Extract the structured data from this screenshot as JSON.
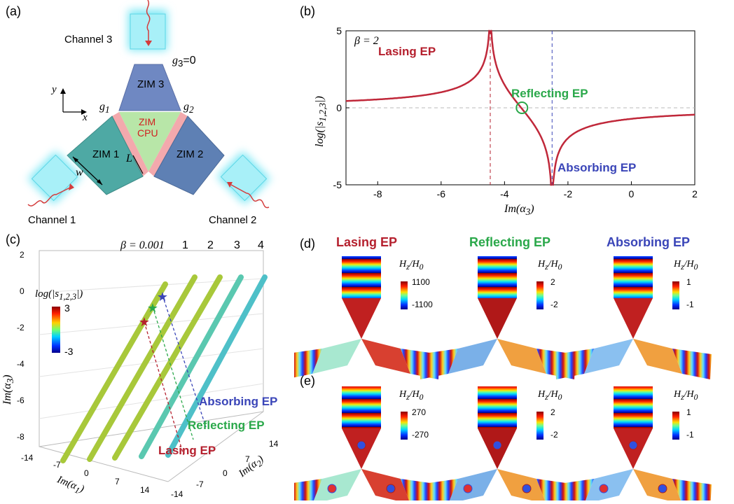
{
  "panel_a": {
    "label": "(a)",
    "channel3": "Channel 3",
    "channel1": "Channel 1",
    "channel2": "Channel 2",
    "g3": "g",
    "g3_sub": "3",
    "g3_eq": "=0",
    "g1": "g",
    "g1_sub": "1",
    "g2": "g",
    "g2_sub": "2",
    "zim3": "ZIM 3",
    "zim1": "ZIM 1",
    "zim2": "ZIM 2",
    "cpu1": "ZIM",
    "cpu2": "CPU",
    "L": "L",
    "w": "w",
    "axis_y": "y",
    "axis_x": "x"
  },
  "panel_b": {
    "label": "(b)",
    "beta": "β = 2",
    "lasing": "Lasing EP",
    "reflecting": "Reflecting EP",
    "absorbing": "Absorbing EP",
    "ylabel": "log(|s",
    "ylabel_sub": "1,2,3",
    "ylabel_end": "|)",
    "xlabel": "Im(α",
    "xlabel_sub": "3",
    "xlabel_end": ")",
    "xticks": [
      "-8",
      "-6",
      "-4",
      "-2",
      "0",
      "2"
    ],
    "yticks": [
      "5",
      "0",
      "-5"
    ]
  },
  "chart_data": {
    "type": "line",
    "xlabel": "Im(α3)",
    "ylabel": "log(|s1,2,3|)",
    "xlim": [
      -9,
      2
    ],
    "ylim": [
      -5,
      5
    ],
    "series": [
      {
        "pole_x": -4.45,
        "zero_x": -2.5
      }
    ],
    "markers": {
      "lasing_x": -4.45,
      "absorbing_x": -2.5,
      "reflecting": [
        -3.45,
        0.0
      ]
    }
  },
  "panel_c": {
    "label": "(c)",
    "beta_label": "β = 0.001",
    "betas": [
      "1",
      "2",
      "3",
      "4"
    ],
    "cb_title": "log(|s",
    "cb_title_sub": "1,2,3",
    "cb_title_end": "|)",
    "cb_max": "3",
    "cb_min": "-3",
    "absorbing": "Absorbing EP",
    "reflecting": "Reflecting EP",
    "lasing": "Lasing EP",
    "zlabel": "Im(α",
    "zlabel_sub": "3",
    "zlabel_end": ")",
    "zticks": [
      "2",
      "0",
      "-2",
      "-4",
      "-6",
      "-8"
    ],
    "x1label": "Im(α",
    "x1label_sub": "1",
    "x1label_end": ")",
    "x1ticks": [
      "-14",
      "-7",
      "0",
      "7",
      "14"
    ],
    "x2label": "Im(α",
    "x2label_sub": "2",
    "x2label_end": ")",
    "x2ticks": [
      "14",
      "7",
      "0",
      "-7",
      "-14"
    ]
  },
  "panel_d": {
    "label": "(d)",
    "col1": "Lasing EP",
    "col2": "Reflecting EP",
    "col3": "Absorbing EP",
    "cb_label": "H",
    "cb_label_sub": "z",
    "cb_label_mid": "/H",
    "cb_label_sub2": "0",
    "cb1": [
      "1100",
      "-1100"
    ],
    "cb2": [
      "2",
      "-2"
    ],
    "cb3": [
      "1",
      "-1"
    ]
  },
  "panel_e": {
    "label": "(e)",
    "cb1": [
      "270",
      "-270"
    ],
    "cb2": [
      "2",
      "-2"
    ],
    "cb3": [
      "1",
      "-1"
    ]
  },
  "colors": {
    "lasing": "#b5202e",
    "reflecting": "#2aa84a",
    "absorbing": "#3a45b8",
    "curve": "#c0283a"
  }
}
